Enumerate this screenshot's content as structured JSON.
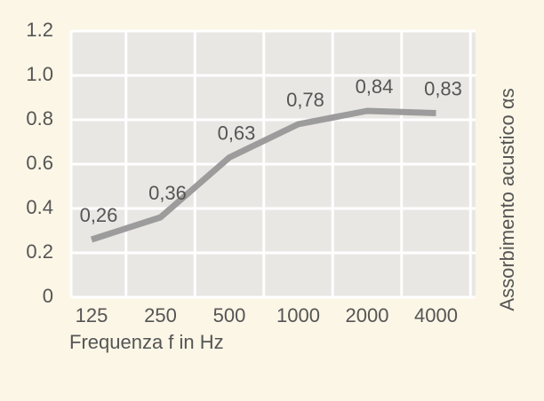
{
  "chart_data": {
    "type": "line",
    "x_label": "Frequenza f in Hz",
    "y_label": "Assorbimento acustico αs",
    "categories": [
      "125",
      "250",
      "500",
      "1000",
      "2000",
      "4000"
    ],
    "values": [
      0.26,
      0.36,
      0.63,
      0.78,
      0.84,
      0.83
    ],
    "value_labels": [
      "0,26",
      "0,36",
      "0,63",
      "0,78",
      "0,84",
      "0,83"
    ],
    "color": "#9c9c9c",
    "ylim": [
      0,
      1.2
    ],
    "yticks": [
      0,
      0.2,
      0.4,
      0.6,
      {
        "value": 0.8,
        "label": "0.8"
      },
      {
        "value": 1,
        "label": "1.0"
      },
      1.2
    ],
    "grid": true
  }
}
